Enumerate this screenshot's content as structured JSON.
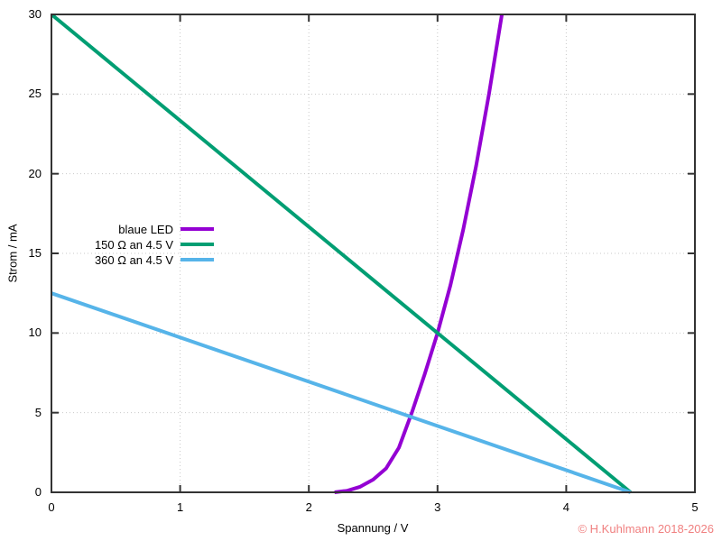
{
  "chart_data": {
    "type": "line",
    "title": "",
    "xlabel": "Spannung / V",
    "ylabel": "Strom / mA",
    "xlim": [
      0,
      5
    ],
    "ylim": [
      0,
      30
    ],
    "x_ticks": [
      0,
      1,
      2,
      3,
      4,
      5
    ],
    "y_ticks": [
      0,
      5,
      10,
      15,
      20,
      25,
      30
    ],
    "grid": "dotted",
    "legend_position": "inside-left-middle",
    "series": [
      {
        "name": "blaue LED",
        "color": "#9400d3",
        "points": [
          [
            2.2,
            0
          ],
          [
            2.3,
            0.1
          ],
          [
            2.4,
            0.35
          ],
          [
            2.5,
            0.8
          ],
          [
            2.6,
            1.5
          ],
          [
            2.7,
            2.8
          ],
          [
            2.8,
            5.0
          ],
          [
            2.9,
            7.4
          ],
          [
            3.0,
            10.0
          ],
          [
            3.1,
            13.0
          ],
          [
            3.2,
            16.5
          ],
          [
            3.3,
            20.5
          ],
          [
            3.4,
            25.0
          ],
          [
            3.5,
            30.0
          ]
        ]
      },
      {
        "name": "150 Ω an 4.5 V",
        "color": "#009e73",
        "points": [
          [
            0,
            30
          ],
          [
            4.5,
            0
          ]
        ]
      },
      {
        "name": "360 Ω an 4.5 V",
        "color": "#56b4e9",
        "points": [
          [
            0,
            12.5
          ],
          [
            4.5,
            0
          ]
        ]
      }
    ],
    "border_color": "#333333",
    "grid_color": "#c9c9c9"
  },
  "watermark": {
    "text": "© H.Kuhlmann 2018-2026",
    "color": "#f08080"
  }
}
